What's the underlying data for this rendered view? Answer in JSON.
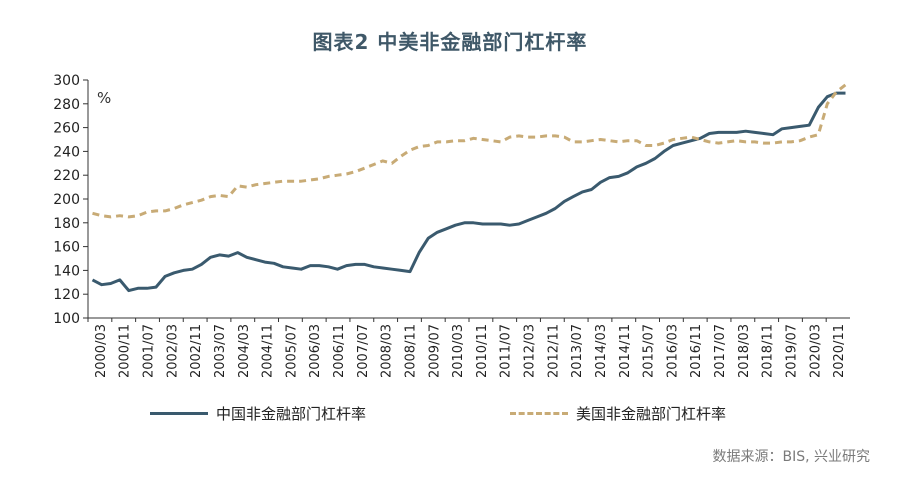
{
  "title": "图表2  中美非金融部门杠杆率",
  "source": "数据来源：BIS, 兴业研究",
  "colors": {
    "china": "#3a5a6e",
    "us": "#c8ab76",
    "axis": "#333333"
  },
  "chart_data": {
    "type": "line",
    "title": "图表2  中美非金融部门杠杆率",
    "unit_label": "%",
    "ylim": [
      100,
      300
    ],
    "yticks": [
      100,
      120,
      140,
      160,
      180,
      200,
      220,
      240,
      260,
      280,
      300
    ],
    "grid": false,
    "legend_position": "bottom",
    "x_tick_labels": [
      "2000/03",
      "2000/11",
      "2001/07",
      "2002/03",
      "2002/11",
      "2003/07",
      "2004/03",
      "2004/11",
      "2005/07",
      "2006/03",
      "2006/11",
      "2007/07",
      "2008/03",
      "2008/11",
      "2009/07",
      "2010/03",
      "2010/11",
      "2011/07",
      "2012/03",
      "2012/11",
      "2013/07",
      "2014/03",
      "2014/11",
      "2015/07",
      "2016/03",
      "2016/11",
      "2017/07",
      "2018/03",
      "2018/11",
      "2019/07",
      "2020/03",
      "2020/11"
    ],
    "x_quarters": [
      "2000Q1",
      "2000Q2",
      "2000Q3",
      "2000Q4",
      "2001Q1",
      "2001Q2",
      "2001Q3",
      "2001Q4",
      "2002Q1",
      "2002Q2",
      "2002Q3",
      "2002Q4",
      "2003Q1",
      "2003Q2",
      "2003Q3",
      "2003Q4",
      "2004Q1",
      "2004Q2",
      "2004Q3",
      "2004Q4",
      "2005Q1",
      "2005Q2",
      "2005Q3",
      "2005Q4",
      "2006Q1",
      "2006Q2",
      "2006Q3",
      "2006Q4",
      "2007Q1",
      "2007Q2",
      "2007Q3",
      "2007Q4",
      "2008Q1",
      "2008Q2",
      "2008Q3",
      "2008Q4",
      "2009Q1",
      "2009Q2",
      "2009Q3",
      "2009Q4",
      "2010Q1",
      "2010Q2",
      "2010Q3",
      "2010Q4",
      "2011Q1",
      "2011Q2",
      "2011Q3",
      "2011Q4",
      "2012Q1",
      "2012Q2",
      "2012Q3",
      "2012Q4",
      "2013Q1",
      "2013Q2",
      "2013Q3",
      "2013Q4",
      "2014Q1",
      "2014Q2",
      "2014Q3",
      "2014Q4",
      "2015Q1",
      "2015Q2",
      "2015Q3",
      "2015Q4",
      "2016Q1",
      "2016Q2",
      "2016Q3",
      "2016Q4",
      "2017Q1",
      "2017Q2",
      "2017Q3",
      "2017Q4",
      "2018Q1",
      "2018Q2",
      "2018Q3",
      "2018Q4",
      "2019Q1",
      "2019Q2",
      "2019Q3",
      "2019Q4",
      "2020Q1",
      "2020Q2",
      "2020Q3",
      "2020Q4"
    ],
    "series": [
      {
        "name": "中国非金融部门杠杆率",
        "style": "solid",
        "values": [
          132,
          128,
          129,
          132,
          123,
          125,
          125,
          126,
          135,
          138,
          140,
          141,
          145,
          151,
          153,
          152,
          155,
          151,
          149,
          147,
          146,
          143,
          142,
          141,
          144,
          144,
          143,
          141,
          144,
          145,
          145,
          143,
          142,
          141,
          140,
          139,
          155,
          167,
          172,
          175,
          178,
          180,
          180,
          179,
          179,
          179,
          178,
          179,
          182,
          185,
          188,
          192,
          198,
          202,
          206,
          208,
          214,
          218,
          219,
          222,
          227,
          230,
          234,
          240,
          245,
          247,
          249,
          251,
          255,
          256,
          256,
          256,
          257,
          256,
          255,
          254,
          259,
          260,
          261,
          262,
          277,
          286,
          289,
          289
        ]
      },
      {
        "name": "美国非金融部门杠杆率",
        "style": "dashed",
        "values": [
          188,
          186,
          185,
          186,
          185,
          186,
          189,
          190,
          190,
          192,
          195,
          197,
          199,
          202,
          203,
          202,
          211,
          210,
          212,
          213,
          214,
          215,
          215,
          215,
          216,
          217,
          219,
          220,
          221,
          223,
          226,
          229,
          232,
          230,
          236,
          241,
          244,
          245,
          248,
          248,
          249,
          249,
          251,
          250,
          249,
          248,
          252,
          253,
          252,
          252,
          253,
          253,
          252,
          248,
          248,
          249,
          250,
          249,
          248,
          249,
          249,
          245,
          245,
          247,
          250,
          251,
          252,
          250,
          248,
          247,
          248,
          249,
          248,
          248,
          247,
          247,
          248,
          248,
          249,
          252,
          254,
          280,
          290,
          296
        ]
      }
    ]
  }
}
